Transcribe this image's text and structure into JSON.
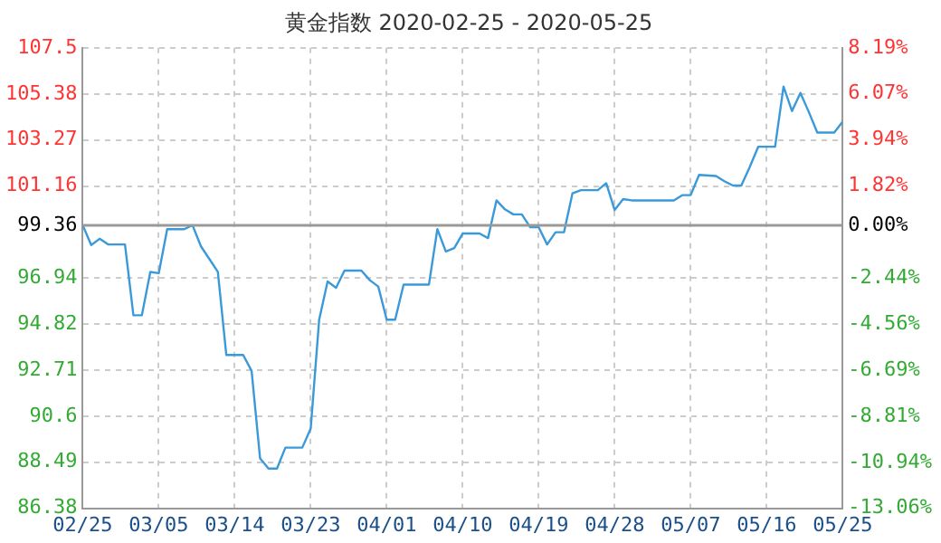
{
  "chart_data": {
    "type": "line",
    "title": "黄金指数 2020-02-25 - 2020-05-25",
    "x": [
      "2020-02-25",
      "2020-02-26",
      "2020-02-27",
      "2020-02-28",
      "2020-03-01",
      "2020-03-02",
      "2020-03-03",
      "2020-03-04",
      "2020-03-05",
      "2020-03-06",
      "2020-03-08",
      "2020-03-09",
      "2020-03-10",
      "2020-03-11",
      "2020-03-12",
      "2020-03-13",
      "2020-03-15",
      "2020-03-16",
      "2020-03-17",
      "2020-03-18",
      "2020-03-19",
      "2020-03-20",
      "2020-03-22",
      "2020-03-23",
      "2020-03-24",
      "2020-03-25",
      "2020-03-26",
      "2020-03-27",
      "2020-03-29",
      "2020-03-30",
      "2020-03-31",
      "2020-04-01",
      "2020-04-02",
      "2020-04-03",
      "2020-04-06",
      "2020-04-07",
      "2020-04-08",
      "2020-04-09",
      "2020-04-10",
      "2020-04-12",
      "2020-04-13",
      "2020-04-14",
      "2020-04-15",
      "2020-04-16",
      "2020-04-17",
      "2020-04-18",
      "2020-04-19",
      "2020-04-20",
      "2020-04-21",
      "2020-04-22",
      "2020-04-23",
      "2020-04-24",
      "2020-04-26",
      "2020-04-27",
      "2020-04-28",
      "2020-04-29",
      "2020-04-30",
      "2020-05-05",
      "2020-05-06",
      "2020-05-07",
      "2020-05-08",
      "2020-05-10",
      "2020-05-11",
      "2020-05-12",
      "2020-05-13",
      "2020-05-14",
      "2020-05-15",
      "2020-05-17",
      "2020-05-18",
      "2020-05-19",
      "2020-05-20",
      "2020-05-21",
      "2020-05-22",
      "2020-05-24",
      "2020-05-25"
    ],
    "series": [
      {
        "color": "#3a9ad9",
        "values": [
          99.36,
          98.45,
          98.74,
          98.48,
          98.48,
          95.23,
          95.23,
          97.22,
          97.16,
          99.18,
          99.18,
          99.36,
          98.39,
          97.81,
          97.22,
          93.41,
          93.41,
          92.68,
          88.67,
          88.2,
          88.2,
          89.16,
          89.16,
          90.04,
          95.03,
          96.78,
          96.49,
          97.28,
          97.28,
          96.84,
          96.55,
          95.03,
          95.03,
          96.64,
          96.64,
          99.18,
          98.16,
          98.31,
          98.98,
          98.98,
          98.77,
          100.5,
          100.09,
          99.86,
          99.86,
          99.27,
          99.27,
          98.48,
          99.04,
          99.04,
          100.82,
          100.97,
          100.97,
          101.29,
          100.06,
          100.56,
          100.5,
          100.5,
          100.74,
          100.74,
          101.67,
          101.62,
          101.38,
          101.18,
          101.18,
          102.03,
          102.96,
          102.96,
          105.72,
          104.6,
          105.43,
          104.55,
          103.61,
          103.61,
          104.11
        ]
      }
    ],
    "xlim": [
      "2020-02-25",
      "2020-05-25"
    ],
    "xticks": [
      {
        "value": "2020-02-25",
        "label": "02/25"
      },
      {
        "value": "2020-03-05",
        "label": "03/05"
      },
      {
        "value": "2020-03-14",
        "label": "03/14"
      },
      {
        "value": "2020-03-23",
        "label": "03/23"
      },
      {
        "value": "2020-04-01",
        "label": "04/01"
      },
      {
        "value": "2020-04-10",
        "label": "04/10"
      },
      {
        "value": "2020-04-19",
        "label": "04/19"
      },
      {
        "value": "2020-04-28",
        "label": "04/28"
      },
      {
        "value": "2020-05-07",
        "label": "05/07"
      },
      {
        "value": "2020-05-16",
        "label": "05/16"
      },
      {
        "value": "2020-05-25",
        "label": "05/25"
      }
    ],
    "ylim": [
      86.38,
      107.5
    ],
    "yticks": [
      86.38,
      88.49,
      90.6,
      92.71,
      94.82,
      96.94,
      99.36,
      101.16,
      103.27,
      105.38,
      107.5
    ],
    "y2lim": [
      -13.06,
      8.19
    ],
    "y2ticks": [
      {
        "value": -13.06,
        "label": "-13.06%"
      },
      {
        "value": -10.94,
        "label": "-10.94%"
      },
      {
        "value": -8.81,
        "label": "-8.81%"
      },
      {
        "value": -6.69,
        "label": "-6.69%"
      },
      {
        "value": -4.56,
        "label": "-4.56%"
      },
      {
        "value": -2.44,
        "label": "-2.44%"
      },
      {
        "value": 0,
        "label": "0.00%"
      },
      {
        "value": 1.82,
        "label": "1.82%"
      },
      {
        "value": 3.94,
        "label": "3.94%"
      },
      {
        "value": 6.07,
        "label": "6.07%"
      },
      {
        "value": 8.19,
        "label": "8.19%"
      }
    ],
    "ref_lines": [
      {
        "axis": "y",
        "value": 99.36,
        "color": "#999999"
      }
    ],
    "grid": true,
    "marker": "none",
    "line_style": "solid",
    "legend": false
  }
}
